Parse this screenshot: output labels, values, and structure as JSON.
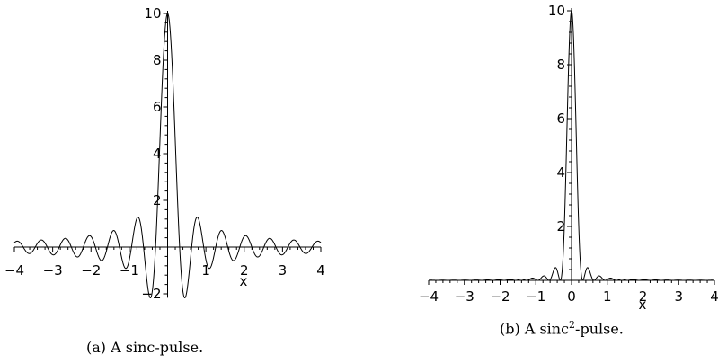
{
  "chart_data": [
    {
      "type": "line",
      "function": "10*sin(10*x)/(10*x)",
      "x_range": [
        -4,
        4
      ],
      "y_range": [
        -2.17,
        10
      ],
      "xlabel": "x",
      "x_ticks": [
        "-4",
        "-3",
        "-2",
        "-1",
        "1",
        "2",
        "3",
        "4"
      ],
      "y_ticks": [
        "-2",
        "2",
        "4",
        "6",
        "8",
        "10"
      ],
      "caption_pre": "(a) A sinc-pulse.",
      "caption_sup": "",
      "caption_post": ""
    },
    {
      "type": "line",
      "function": "10*(sin(10*x)/(10*x))^2",
      "x_range": [
        -4,
        4
      ],
      "y_range": [
        0,
        10
      ],
      "xlabel": "x",
      "x_ticks": [
        "-4",
        "-3",
        "-2",
        "-1",
        "0",
        "1",
        "2",
        "3",
        "4"
      ],
      "y_ticks": [
        "2",
        "4",
        "6",
        "8",
        "10"
      ],
      "caption_pre": "(b) A sinc",
      "caption_sup": "2",
      "caption_post": "-pulse."
    }
  ]
}
